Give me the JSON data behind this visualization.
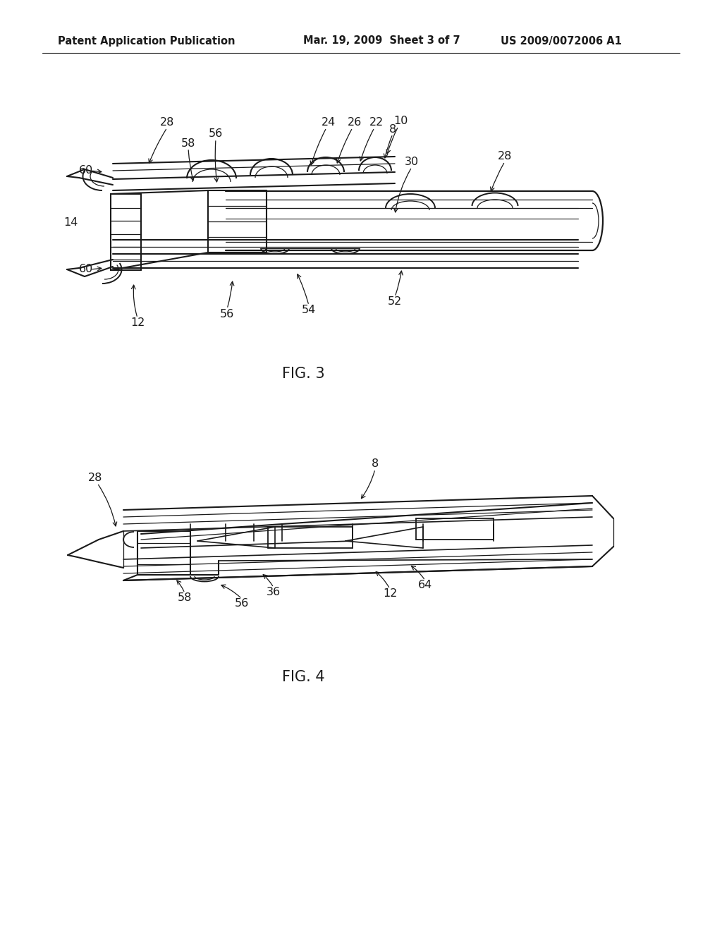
{
  "bg_color": "#ffffff",
  "header_left": "Patent Application Publication",
  "header_center": "Mar. 19, 2009  Sheet 3 of 7",
  "header_right": "US 2009/0072006 A1",
  "fig3_caption": "FIG. 3",
  "fig4_caption": "FIG. 4",
  "line_color": "#1a1a1a",
  "text_color": "#1a1a1a",
  "header_fontsize": 10.5,
  "caption_fontsize": 15,
  "label_fontsize": 11.5
}
